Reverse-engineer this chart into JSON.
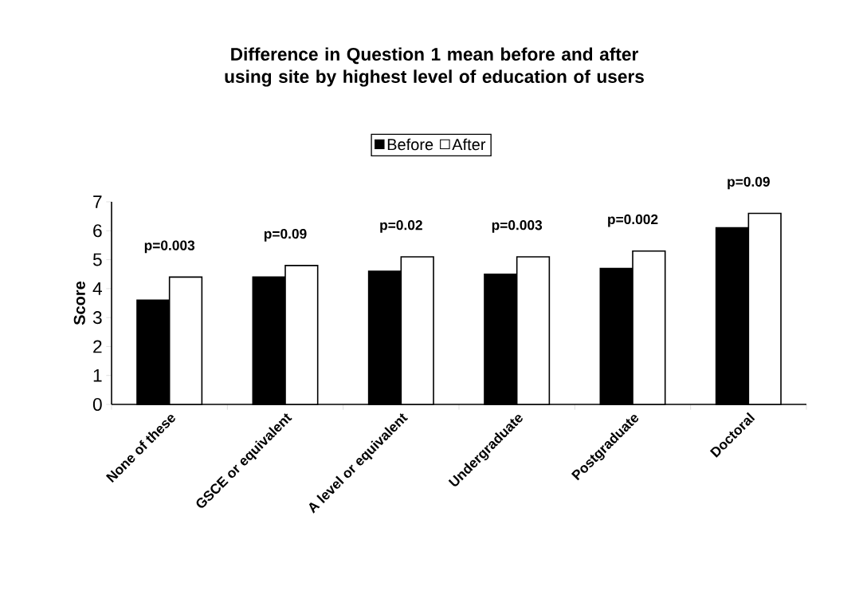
{
  "chart_data": {
    "type": "bar",
    "title": "Difference in Question 1 mean before and after using site by highest level of education of users",
    "ylabel": "Score",
    "categories": [
      "None of these",
      "GSCE or equivalent",
      "A level or equivalent",
      "Undergraduate",
      "Postgraduate",
      "Doctoral"
    ],
    "series": [
      {
        "name": "Before",
        "color": "#000000",
        "values": [
          3.6,
          4.4,
          4.6,
          4.5,
          4.7,
          6.1
        ]
      },
      {
        "name": "After",
        "color": "#ffffff",
        "values": [
          4.4,
          4.8,
          5.1,
          5.1,
          5.3,
          6.6
        ]
      }
    ],
    "ylim": [
      0,
      7
    ],
    "yticks": [
      0,
      1,
      2,
      3,
      4,
      5,
      6,
      7
    ],
    "legend": "top",
    "grid": false,
    "annotations": [
      "p=0.003",
      "p=0.09",
      "p=0.02",
      "p=0.003",
      "p=0.002",
      "p=0.09"
    ]
  }
}
